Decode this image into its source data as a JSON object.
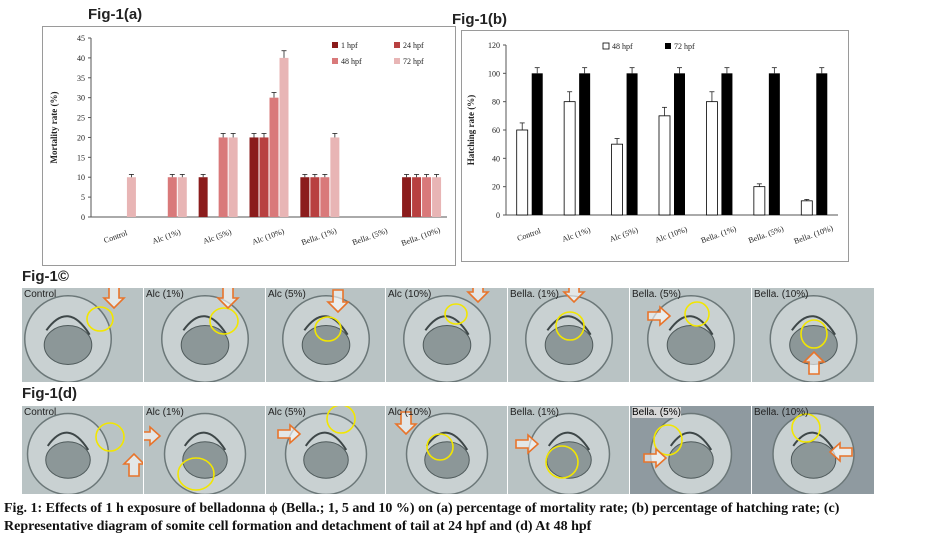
{
  "figures": {
    "a_title": "Fig-1(a)",
    "b_title": "Fig-1(b)",
    "c_title": "Fig-1©",
    "d_title": "Fig-1(d)"
  },
  "chart_data": [
    {
      "type": "bar",
      "ylabel": "Mortality rate (%)",
      "ylim": [
        0,
        45
      ],
      "yticks": [
        0,
        5,
        10,
        15,
        20,
        25,
        30,
        35,
        40,
        45
      ],
      "categories": [
        "Control",
        "Alc (1%)",
        "Alc (5%)",
        "Alc (10%)",
        "Bella. (1%)",
        "Bella. (5%)",
        "Bella. (10%)"
      ],
      "legend_position": "top-right",
      "series": [
        {
          "name": "1 hpf",
          "color": "#8b1c1c",
          "values": [
            0,
            0,
            10,
            20,
            10,
            0,
            10
          ],
          "errors": [
            0,
            0,
            0.7,
            1,
            0.7,
            0,
            0.7
          ]
        },
        {
          "name": "24 hpf",
          "color": "#b84040",
          "values": [
            0,
            0,
            0,
            20,
            10,
            0,
            10
          ],
          "errors": [
            0,
            0,
            0,
            1,
            0.7,
            0,
            0.7
          ]
        },
        {
          "name": "48 hpf",
          "color": "#d9797a",
          "values": [
            0,
            10,
            20,
            30,
            10,
            0,
            10
          ],
          "errors": [
            0,
            0.7,
            1,
            1.3,
            0.7,
            0,
            0.7
          ]
        },
        {
          "name": "72 hpf",
          "color": "#e8b5b5",
          "values": [
            10,
            10,
            20,
            40,
            20,
            0,
            10
          ],
          "errors": [
            0.7,
            0.7,
            1,
            1.8,
            1,
            0,
            0.7
          ]
        }
      ]
    },
    {
      "type": "bar",
      "ylabel": "Hatching rate (%)",
      "ylim": [
        0,
        120
      ],
      "yticks": [
        0,
        20,
        40,
        60,
        80,
        100,
        120
      ],
      "categories": [
        "Control",
        "Alc (1%)",
        "Alc (5%)",
        "Alc (10%)",
        "Bella. (1%)",
        "Bella. (5%)",
        "Bella. (10%)"
      ],
      "legend_position": "top-left",
      "series": [
        {
          "name": "48 hpf",
          "color": "#ffffff",
          "values": [
            60,
            80,
            50,
            70,
            80,
            20,
            10
          ],
          "errors": [
            5,
            7,
            4,
            6,
            7,
            2,
            1
          ]
        },
        {
          "name": "72 hpf",
          "color": "#000000",
          "values": [
            100,
            100,
            100,
            100,
            100,
            100,
            100
          ],
          "errors": [
            4,
            4,
            4,
            4,
            4,
            4,
            4
          ]
        }
      ]
    }
  ],
  "panels_c": [
    "Control",
    "Alc (1%)",
    "Alc (5%)",
    "Alc (10%)",
    "Bella. (1%)",
    "Bella. (5%)",
    "Bella. (10%)"
  ],
  "panels_d": [
    "Control",
    "Alc (1%)",
    "Alc (5%)",
    "Alc (10%)",
    "Bella. (1%)",
    "Bella. (5%)",
    "Bella. (10%)"
  ],
  "caption": "Fig. 1: Effects of 1 h exposure of belladonna ϕ (Bella.; 1, 5 and 10 %) on (a) percentage of mortality rate; (b) percentage of hatching rate; (c) Representative diagram of somite cell formation and detachment of tail at 24 hpf and (d) At 48 hpf",
  "colors": {
    "highlight_circle": "#f2e600",
    "arrow_outline": "#e8742b",
    "micrograph_bg": "#b9c3c4"
  },
  "icons": [
    "arrow-icon",
    "highlight-circle-icon"
  ]
}
